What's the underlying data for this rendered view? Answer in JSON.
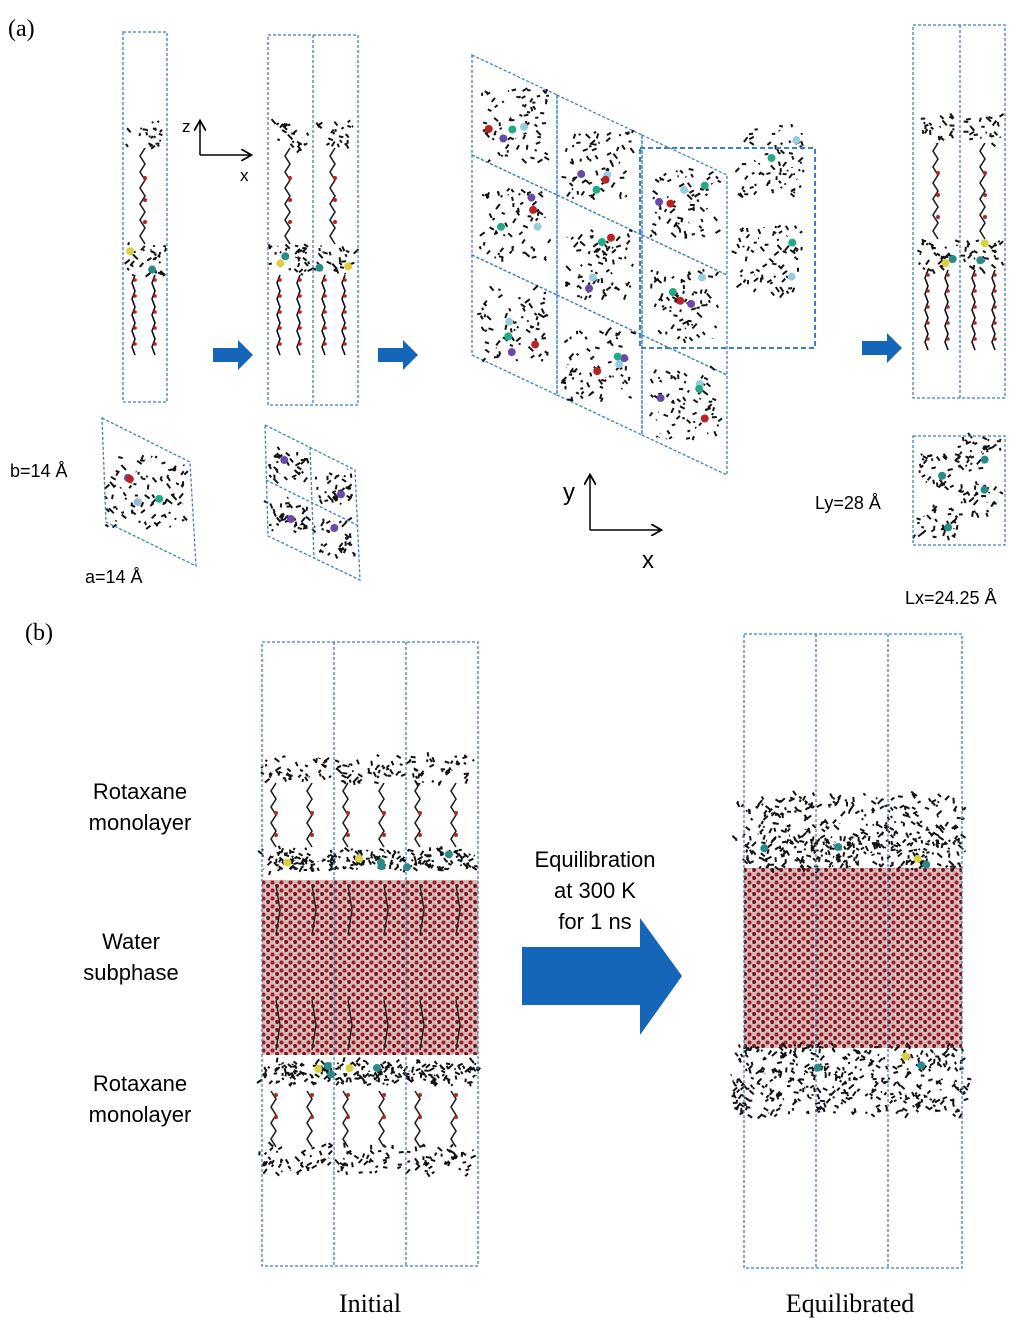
{
  "panel_a": {
    "label": "(a)",
    "axes_zx": {
      "z": "z",
      "x": "x"
    },
    "unit_cell": {
      "b": "b=14 Å",
      "a": "a=14 Å"
    },
    "axes_xy": {
      "y": "y",
      "x": "x"
    },
    "supercell": {
      "ly": "Ly=28 Å",
      "lx": "Lx=24.25 Å"
    }
  },
  "panel_b": {
    "label": "(b)",
    "layers": [
      {
        "lines": [
          "Rotaxane",
          "monolayer"
        ]
      },
      {
        "lines": [
          "Water",
          "subphase"
        ]
      },
      {
        "lines": [
          "Rotaxane",
          "monolayer"
        ]
      }
    ],
    "process": {
      "lines": [
        "Equilibration",
        "at 300 K",
        "for 1 ns"
      ]
    },
    "captions": {
      "initial": "Initial",
      "equilibrated": "Equilibrated"
    }
  }
}
